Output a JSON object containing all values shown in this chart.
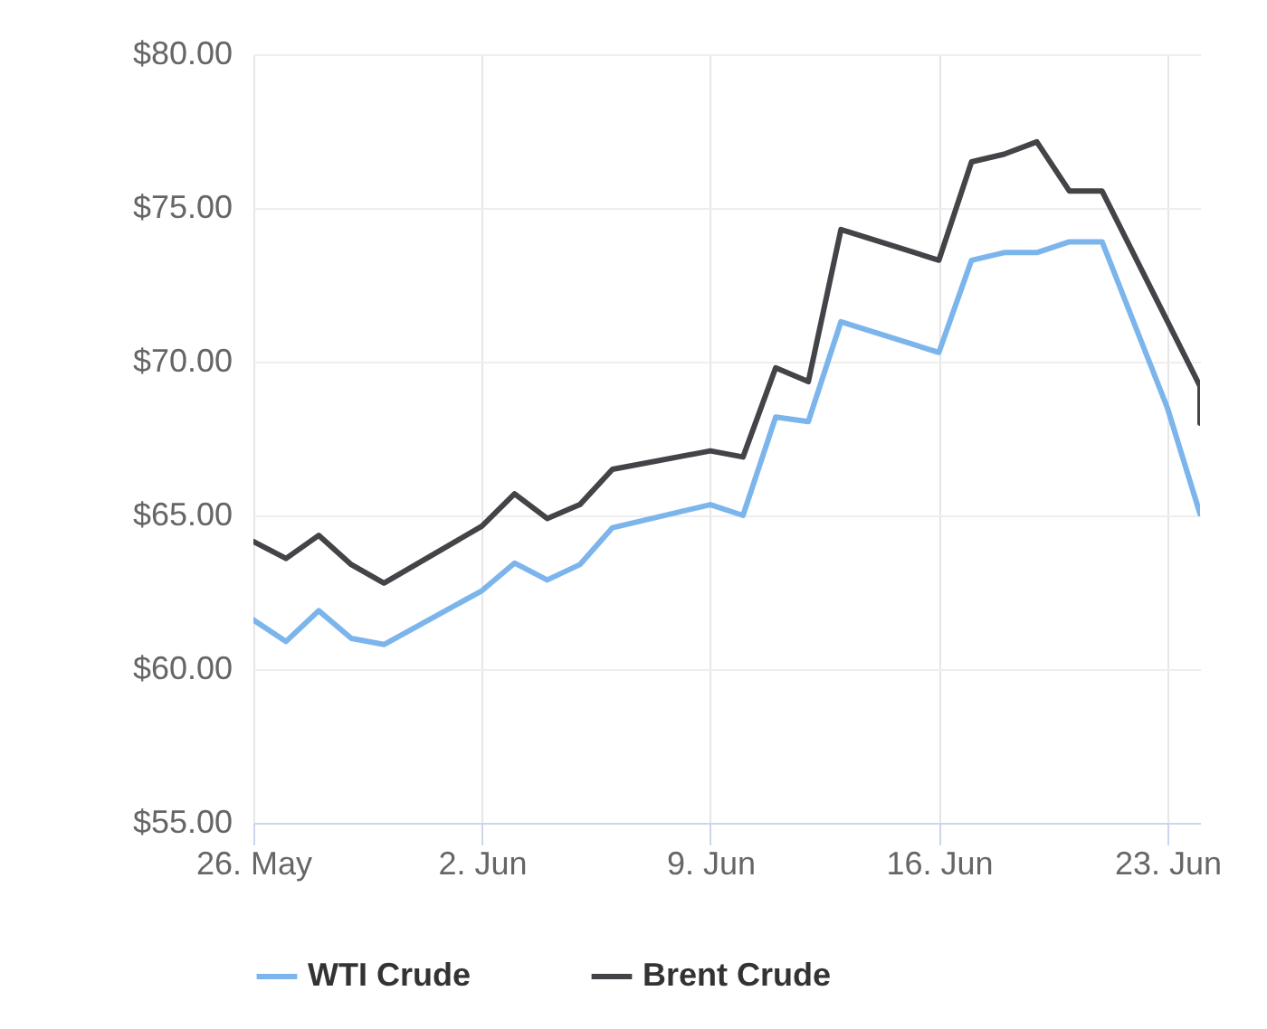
{
  "chart_data": {
    "type": "line",
    "x": [
      "--05-26",
      "--05-27",
      "--05-28",
      "--05-29",
      "--05-30",
      "--06-02",
      "--06-03",
      "--06-04",
      "--06-05",
      "--06-06",
      "--06-09",
      "--06-10",
      "--06-11",
      "--06-12",
      "--06-13",
      "--06-16",
      "--06-17",
      "--06-18",
      "--06-19",
      "--06-20",
      "--06-21",
      "--06-23",
      "--06-24"
    ],
    "series": [
      {
        "name": "WTI Crude",
        "color": "#7cb5ec",
        "values": [
          61.6,
          60.9,
          61.9,
          61.0,
          60.8,
          62.55,
          63.45,
          62.9,
          63.4,
          64.6,
          65.35,
          65.0,
          68.2,
          68.05,
          71.3,
          70.3,
          73.3,
          73.55,
          73.55,
          73.9,
          73.9,
          68.5,
          65.05
        ]
      },
      {
        "name": "Brent Crude",
        "color": "#434348",
        "x": [
          "--05-26",
          "--05-27",
          "--05-28",
          "--05-29",
          "--05-30",
          "--06-02",
          "--06-03",
          "--06-04",
          "--06-05",
          "--06-06",
          "--06-09",
          "--06-10",
          "--06-11",
          "--06-12",
          "--06-13",
          "--06-16",
          "--06-17",
          "--06-18",
          "--06-19",
          "--06-20",
          "--06-21",
          "--06-24",
          "--06-24"
        ],
        "values": [
          64.15,
          63.6,
          64.35,
          63.4,
          62.8,
          64.65,
          65.7,
          64.9,
          65.35,
          66.5,
          67.1,
          66.9,
          69.8,
          69.35,
          74.3,
          73.3,
          76.5,
          76.75,
          77.15,
          75.55,
          75.55,
          69.2,
          68.0
        ]
      }
    ],
    "xlim": [
      "--05-26",
      "--06-24"
    ],
    "xticks": [
      {
        "value": "--05-26",
        "label": "26. May"
      },
      {
        "value": "--06-02",
        "label": "2. Jun"
      },
      {
        "value": "--06-09",
        "label": "9. Jun"
      },
      {
        "value": "--06-16",
        "label": "16. Jun"
      },
      {
        "value": "--06-23",
        "label": "23. Jun"
      }
    ],
    "ylim": [
      55,
      80
    ],
    "yticks": [
      {
        "value": 55,
        "label": "$55.00"
      },
      {
        "value": 60,
        "label": "$60.00"
      },
      {
        "value": 65,
        "label": "$65.00"
      },
      {
        "value": 70,
        "label": "$70.00"
      },
      {
        "value": 75,
        "label": "$75.00"
      },
      {
        "value": 80,
        "label": "$80.00"
      }
    ],
    "grid": true,
    "legend": "bottom"
  }
}
